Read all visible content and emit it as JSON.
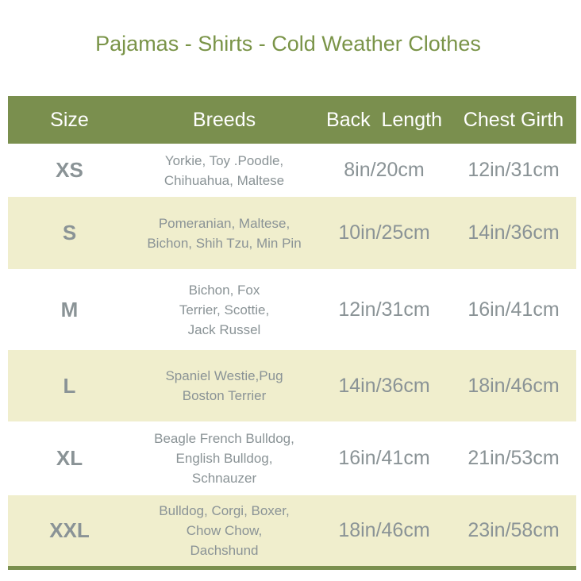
{
  "title": "Pajamas - Shirts - Cold Weather Clothes",
  "colors": {
    "header_bg": "#7a8f4e",
    "alt_row_bg": "#f0eecd",
    "text": "#8a9396",
    "title": "#7a9448"
  },
  "headers": [
    "Size",
    "Breeds",
    "Back  Length",
    "Chest Girth"
  ],
  "rows": [
    {
      "size": "XS",
      "breeds": [
        "Yorkie, Toy .Poodle,",
        "Chihuahua, Maltese"
      ],
      "back": "8in/20cm",
      "chest": "12in/31cm"
    },
    {
      "size": "S",
      "breeds": [
        "Pomeranian, Maltese,",
        "Bichon, Shih Tzu, Min Pin"
      ],
      "back": "10in/25cm",
      "chest": "14in/36cm"
    },
    {
      "size": "M",
      "breeds": [
        "Bichon, Fox",
        "Terrier, Scottie,",
        "Jack Russel"
      ],
      "back": "12in/31cm",
      "chest": "16in/41cm"
    },
    {
      "size": "L",
      "breeds": [
        "Spaniel Westie,Pug",
        "Boston Terrier"
      ],
      "back": "14in/36cm",
      "chest": "18in/46cm"
    },
    {
      "size": "XL",
      "breeds": [
        "Beagle French Bulldog,",
        "English Bulldog,",
        "Schnauzer"
      ],
      "back": "16in/41cm",
      "chest": "21in/53cm"
    },
    {
      "size": "XXL",
      "breeds": [
        "Bulldog, Corgi, Boxer,",
        "Chow Chow,",
        "Dachshund"
      ],
      "back": "18in/46cm",
      "chest": "23in/58cm"
    }
  ]
}
